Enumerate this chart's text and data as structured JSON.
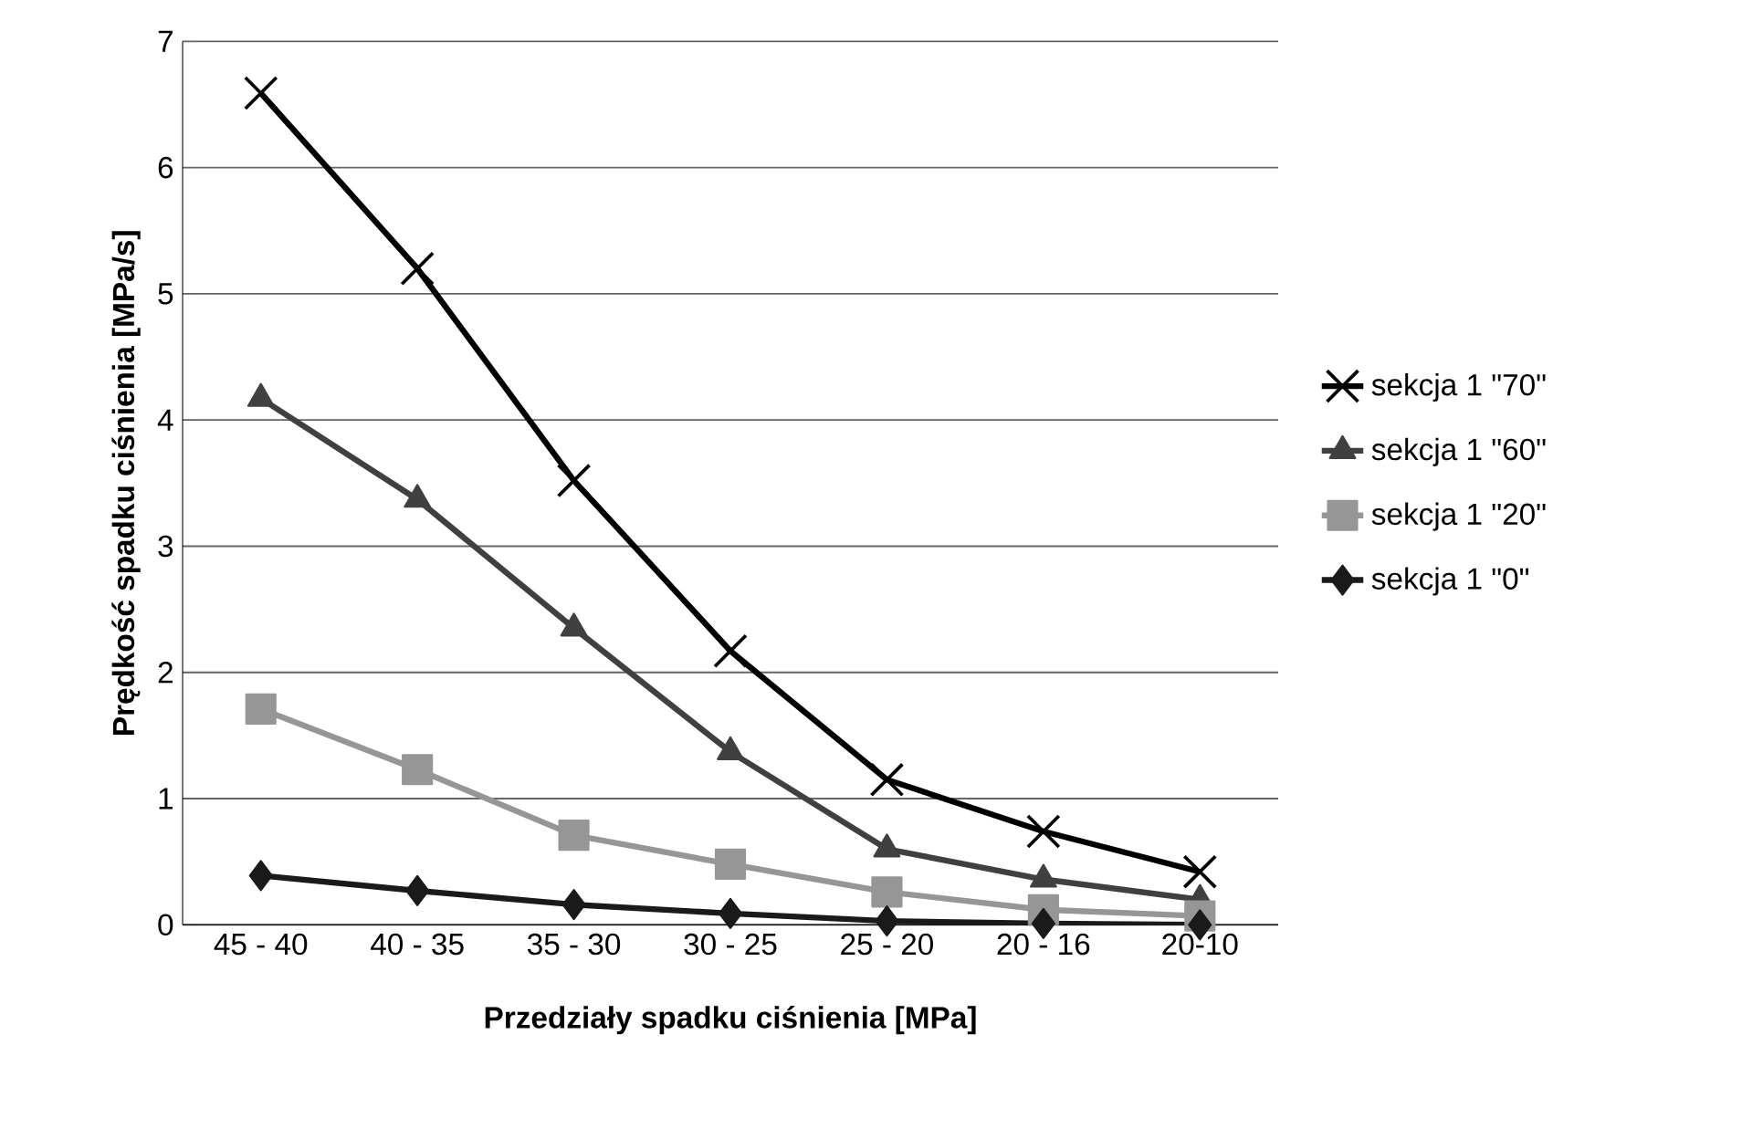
{
  "chart_data": {
    "type": "line",
    "xlabel": "Przedziały spadku ciśnienia [MPa]",
    "ylabel": "Prędkość spadku ciśnienia [MPa/s]",
    "categories": [
      "45 - 40",
      "40 - 35",
      "35 - 30",
      "30 - 25",
      "25 - 20",
      "20 - 16",
      "20-10"
    ],
    "ylim": [
      0,
      7
    ],
    "yticks": [
      0,
      1,
      2,
      3,
      4,
      5,
      6,
      7
    ],
    "grid": "y",
    "legend": "right",
    "series": [
      {
        "name": "sekcja 1 \"70\"",
        "color": "#000000",
        "marker": "cross",
        "values": [
          6.59,
          5.2,
          3.52,
          2.17,
          1.15,
          0.74,
          0.42
        ]
      },
      {
        "name": "sekcja 1 \"60\"",
        "color": "#404040",
        "marker": "triangle",
        "values": [
          4.17,
          3.37,
          2.35,
          1.37,
          0.6,
          0.36,
          0.2
        ]
      },
      {
        "name": "sekcja 1 \"20\"",
        "color": "#969696",
        "marker": "square",
        "values": [
          1.71,
          1.23,
          0.71,
          0.48,
          0.26,
          0.12,
          0.07
        ]
      },
      {
        "name": "sekcja 1 \"0\"",
        "color": "#1a1a1a",
        "marker": "diamond",
        "values": [
          0.39,
          0.27,
          0.16,
          0.09,
          0.03,
          0.01,
          0.0
        ]
      }
    ]
  }
}
